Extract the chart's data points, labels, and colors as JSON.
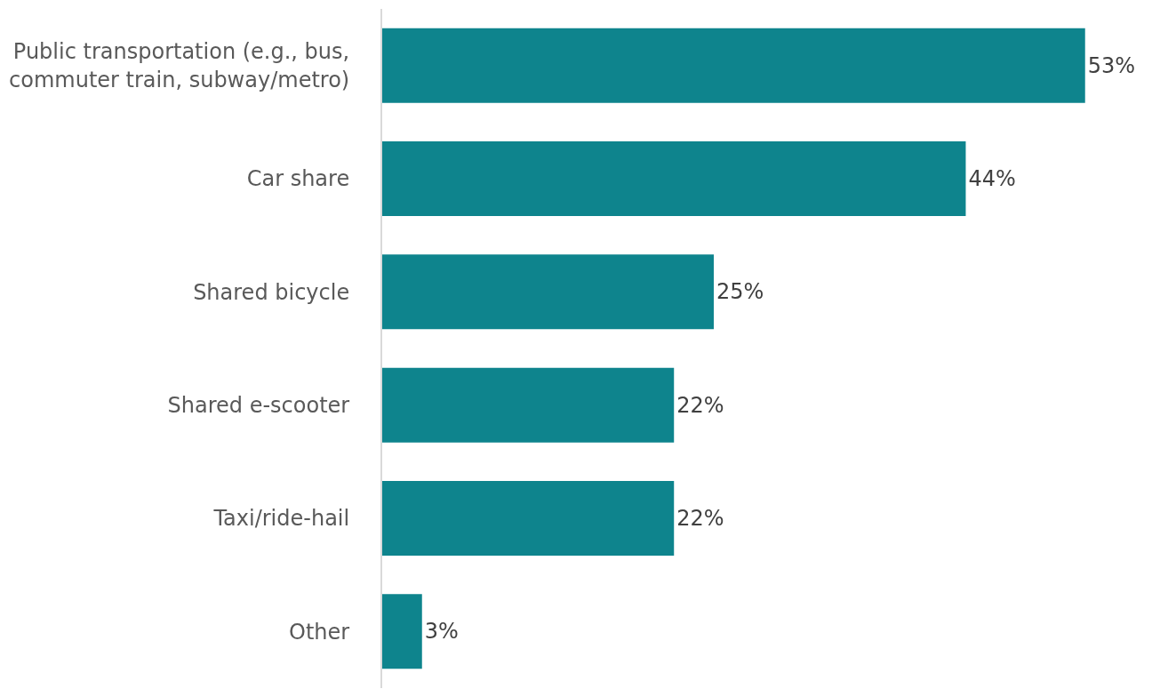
{
  "chart_data": {
    "type": "bar",
    "orientation": "horizontal",
    "categories": [
      "Public transportation (e.g., bus, commuter train, subway/metro)",
      "Car share",
      "Shared bicycle",
      "Shared e-scooter",
      "Taxi/ride-hail",
      "Other"
    ],
    "values": [
      53,
      44,
      25,
      22,
      22,
      3
    ],
    "value_labels": [
      "53%",
      "44%",
      "25%",
      "22%",
      "22%",
      "3%"
    ],
    "color": "#0e848d"
  }
}
